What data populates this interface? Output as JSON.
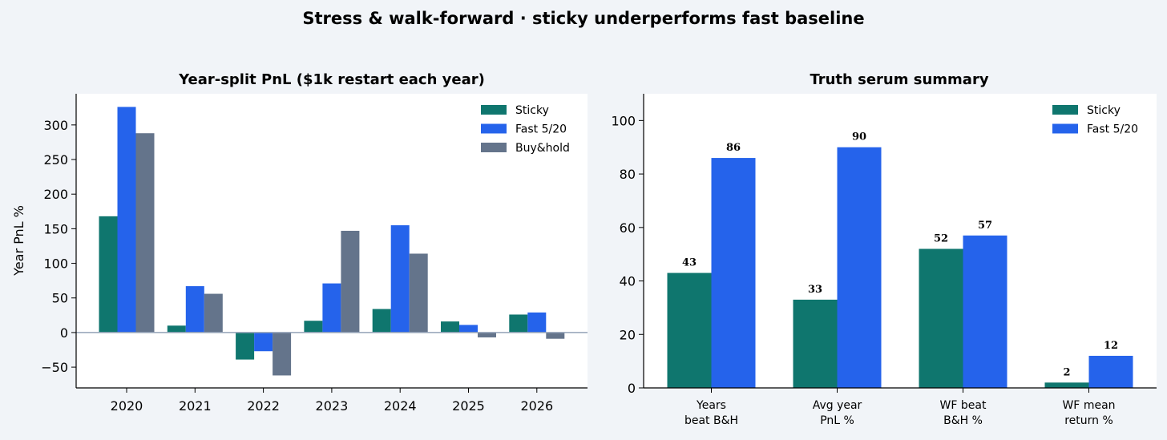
{
  "figure": {
    "title": "Stress & walk-forward · sticky underperforms fast baseline"
  },
  "colors": {
    "sticky": "#0f766e",
    "fast": "#2563eb",
    "buyhold": "#64748b",
    "zero_line": "#94a3b8",
    "axis": "#000000",
    "background": "#f1f4f8",
    "plot_background": "#ffffff"
  },
  "chart_data": [
    {
      "type": "bar",
      "title": "Year-split PnL ($1k restart each year)",
      "xlabel": "",
      "ylabel": "Year PnL %",
      "categories": [
        "2020",
        "2021",
        "2022",
        "2023",
        "2024",
        "2025",
        "2026"
      ],
      "series": [
        {
          "name": "Sticky",
          "values": [
            168,
            10,
            -39,
            17,
            34,
            16,
            26
          ]
        },
        {
          "name": "Fast 5/20",
          "values": [
            326,
            67,
            -27,
            71,
            155,
            11,
            29
          ]
        },
        {
          "name": "Buy&hold",
          "values": [
            288,
            56,
            -62,
            147,
            114,
            -7,
            -9
          ]
        }
      ],
      "ylim": [
        -80,
        345
      ],
      "yticks": [
        -50,
        0,
        50,
        100,
        150,
        200,
        250,
        300
      ],
      "legend": "top-right",
      "grid": false
    },
    {
      "type": "bar",
      "title": "Truth serum summary",
      "xlabel": "",
      "ylabel": "",
      "categories": [
        [
          "Years",
          "beat B&H"
        ],
        [
          "Avg year",
          "PnL %"
        ],
        [
          "WF beat",
          "B&H %"
        ],
        [
          "WF mean",
          "return %"
        ]
      ],
      "series": [
        {
          "name": "Sticky",
          "values": [
            43,
            33,
            52,
            2
          ],
          "labels": [
            "43",
            "33",
            "52",
            "2"
          ]
        },
        {
          "name": "Fast 5/20",
          "values": [
            86,
            90,
            57,
            12
          ],
          "labels": [
            "86",
            "90",
            "57",
            "12"
          ]
        }
      ],
      "ylim": [
        0,
        110
      ],
      "yticks": [
        0,
        20,
        40,
        60,
        80,
        100
      ],
      "legend": "top-right",
      "grid": false
    }
  ]
}
